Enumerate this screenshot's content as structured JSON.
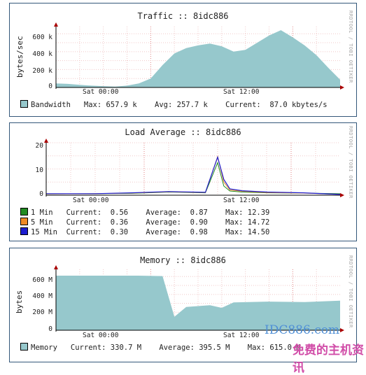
{
  "graphs": [
    {
      "id": "traffic",
      "title": "Traffic :: 8idc886",
      "ylabel": "bytes/sec",
      "side_credit": "RRDTOOL / TOBI OETIKER",
      "yticks": [
        "600 k",
        "400 k",
        "200 k",
        "0"
      ],
      "xticks": [
        "Sat 00:00",
        "Sat 12:00"
      ],
      "legend": [
        {
          "label": "Bandwidth",
          "color": "#96c8cc",
          "fields": "   Max: 657.9 k    Avg: 257.7 k    Current:  87.0 kbytes/s"
        }
      ]
    },
    {
      "id": "load",
      "title": "Load Average :: 8idc886",
      "ylabel": "",
      "side_credit": "RRDTOOL / TOBI OETIKER",
      "yticks": [
        "20",
        "10",
        "0"
      ],
      "xticks": [
        "Sat 00:00",
        "Sat 12:00"
      ],
      "legend": [
        {
          "label": "1 Min ",
          "color": "#228b22",
          "fields": "  Current:  0.56    Average:  0.87    Max: 12.39"
        },
        {
          "label": "5 Min ",
          "color": "#f08a24",
          "fields": "  Current:  0.36    Average:  0.90    Max: 14.72"
        },
        {
          "label": "15 Min",
          "color": "#1c1ccf",
          "fields": "  Current:  0.30    Average:  0.98    Max: 14.50"
        }
      ]
    },
    {
      "id": "memory",
      "title": "Memory :: 8idc886",
      "ylabel": "bytes",
      "side_credit": "RRDTOOL / TOBI OETIKER",
      "yticks": [
        "600 M",
        "400 M",
        "200 M",
        "0"
      ],
      "xticks": [
        "Sat 00:00",
        "Sat 12:00"
      ],
      "legend": [
        {
          "label": "Memory",
          "color": "#96c8cc",
          "fields": "   Current: 330.7 M    Average: 395.5 M    Max: 615.0 M"
        }
      ]
    }
  ],
  "watermark": {
    "url": "IDC886.com",
    "cn": "免费的主机资讯"
  },
  "chart_data": [
    {
      "type": "area",
      "title": "Traffic :: 8idc886",
      "ylabel": "bytes/sec",
      "ylim": [
        0,
        680000
      ],
      "xlim_hours": [
        -8,
        16
      ],
      "grid": true,
      "series": [
        {
          "name": "Bandwidth",
          "color": "#96c8cc",
          "x": [
            -8,
            -7,
            -6,
            -5,
            -4,
            -3,
            -2,
            -1,
            0,
            1,
            2,
            3,
            4,
            5,
            6,
            7,
            8,
            9,
            10,
            11,
            12,
            13,
            14,
            15,
            16
          ],
          "values": [
            45000,
            40000,
            30000,
            20000,
            15000,
            10000,
            20000,
            45000,
            100000,
            250000,
            380000,
            440000,
            470000,
            490000,
            460000,
            400000,
            420000,
            500000,
            580000,
            640000,
            560000,
            470000,
            360000,
            220000,
            87000
          ]
        }
      ]
    },
    {
      "type": "line",
      "title": "Load Average :: 8idc886",
      "ylim": [
        0,
        20
      ],
      "grid": true,
      "series": [
        {
          "name": "1 Min",
          "color": "#228b22",
          "x": [
            -8,
            -4,
            -1,
            2,
            5,
            6,
            6.5,
            7,
            8,
            10,
            13,
            16
          ],
          "values": [
            0.5,
            0.6,
            0.7,
            1.2,
            0.9,
            12.39,
            3.5,
            1.6,
            1.2,
            0.9,
            0.8,
            0.56
          ]
        },
        {
          "name": "5 Min",
          "color": "#f08a24",
          "x": [
            -8,
            -4,
            -1,
            2,
            5,
            6,
            6.5,
            7,
            8,
            10,
            13,
            16
          ],
          "values": [
            0.5,
            0.6,
            0.8,
            1.3,
            1.0,
            14.72,
            5.0,
            2.0,
            1.5,
            1.0,
            0.8,
            0.36
          ]
        },
        {
          "name": "15 Min",
          "color": "#1c1ccf",
          "x": [
            -8,
            -4,
            -1,
            2,
            5,
            6,
            6.5,
            7,
            8,
            10,
            13,
            16
          ],
          "values": [
            0.6,
            0.6,
            0.9,
            1.4,
            1.1,
            14.5,
            6.0,
            2.4,
            1.7,
            1.2,
            0.9,
            0.3
          ]
        }
      ]
    },
    {
      "type": "area",
      "title": "Memory :: 8idc886",
      "ylabel": "bytes",
      "ylim": [
        0,
        680000000
      ],
      "grid": true,
      "series": [
        {
          "name": "Memory",
          "color": "#96c8cc",
          "x": [
            -8,
            -3,
            -1,
            1,
            2,
            3,
            5,
            6,
            7,
            10,
            13,
            16
          ],
          "values": [
            610000000,
            610000000,
            610000000,
            605000000,
            150000000,
            260000000,
            280000000,
            250000000,
            310000000,
            320000000,
            315000000,
            330700000
          ]
        }
      ]
    }
  ]
}
